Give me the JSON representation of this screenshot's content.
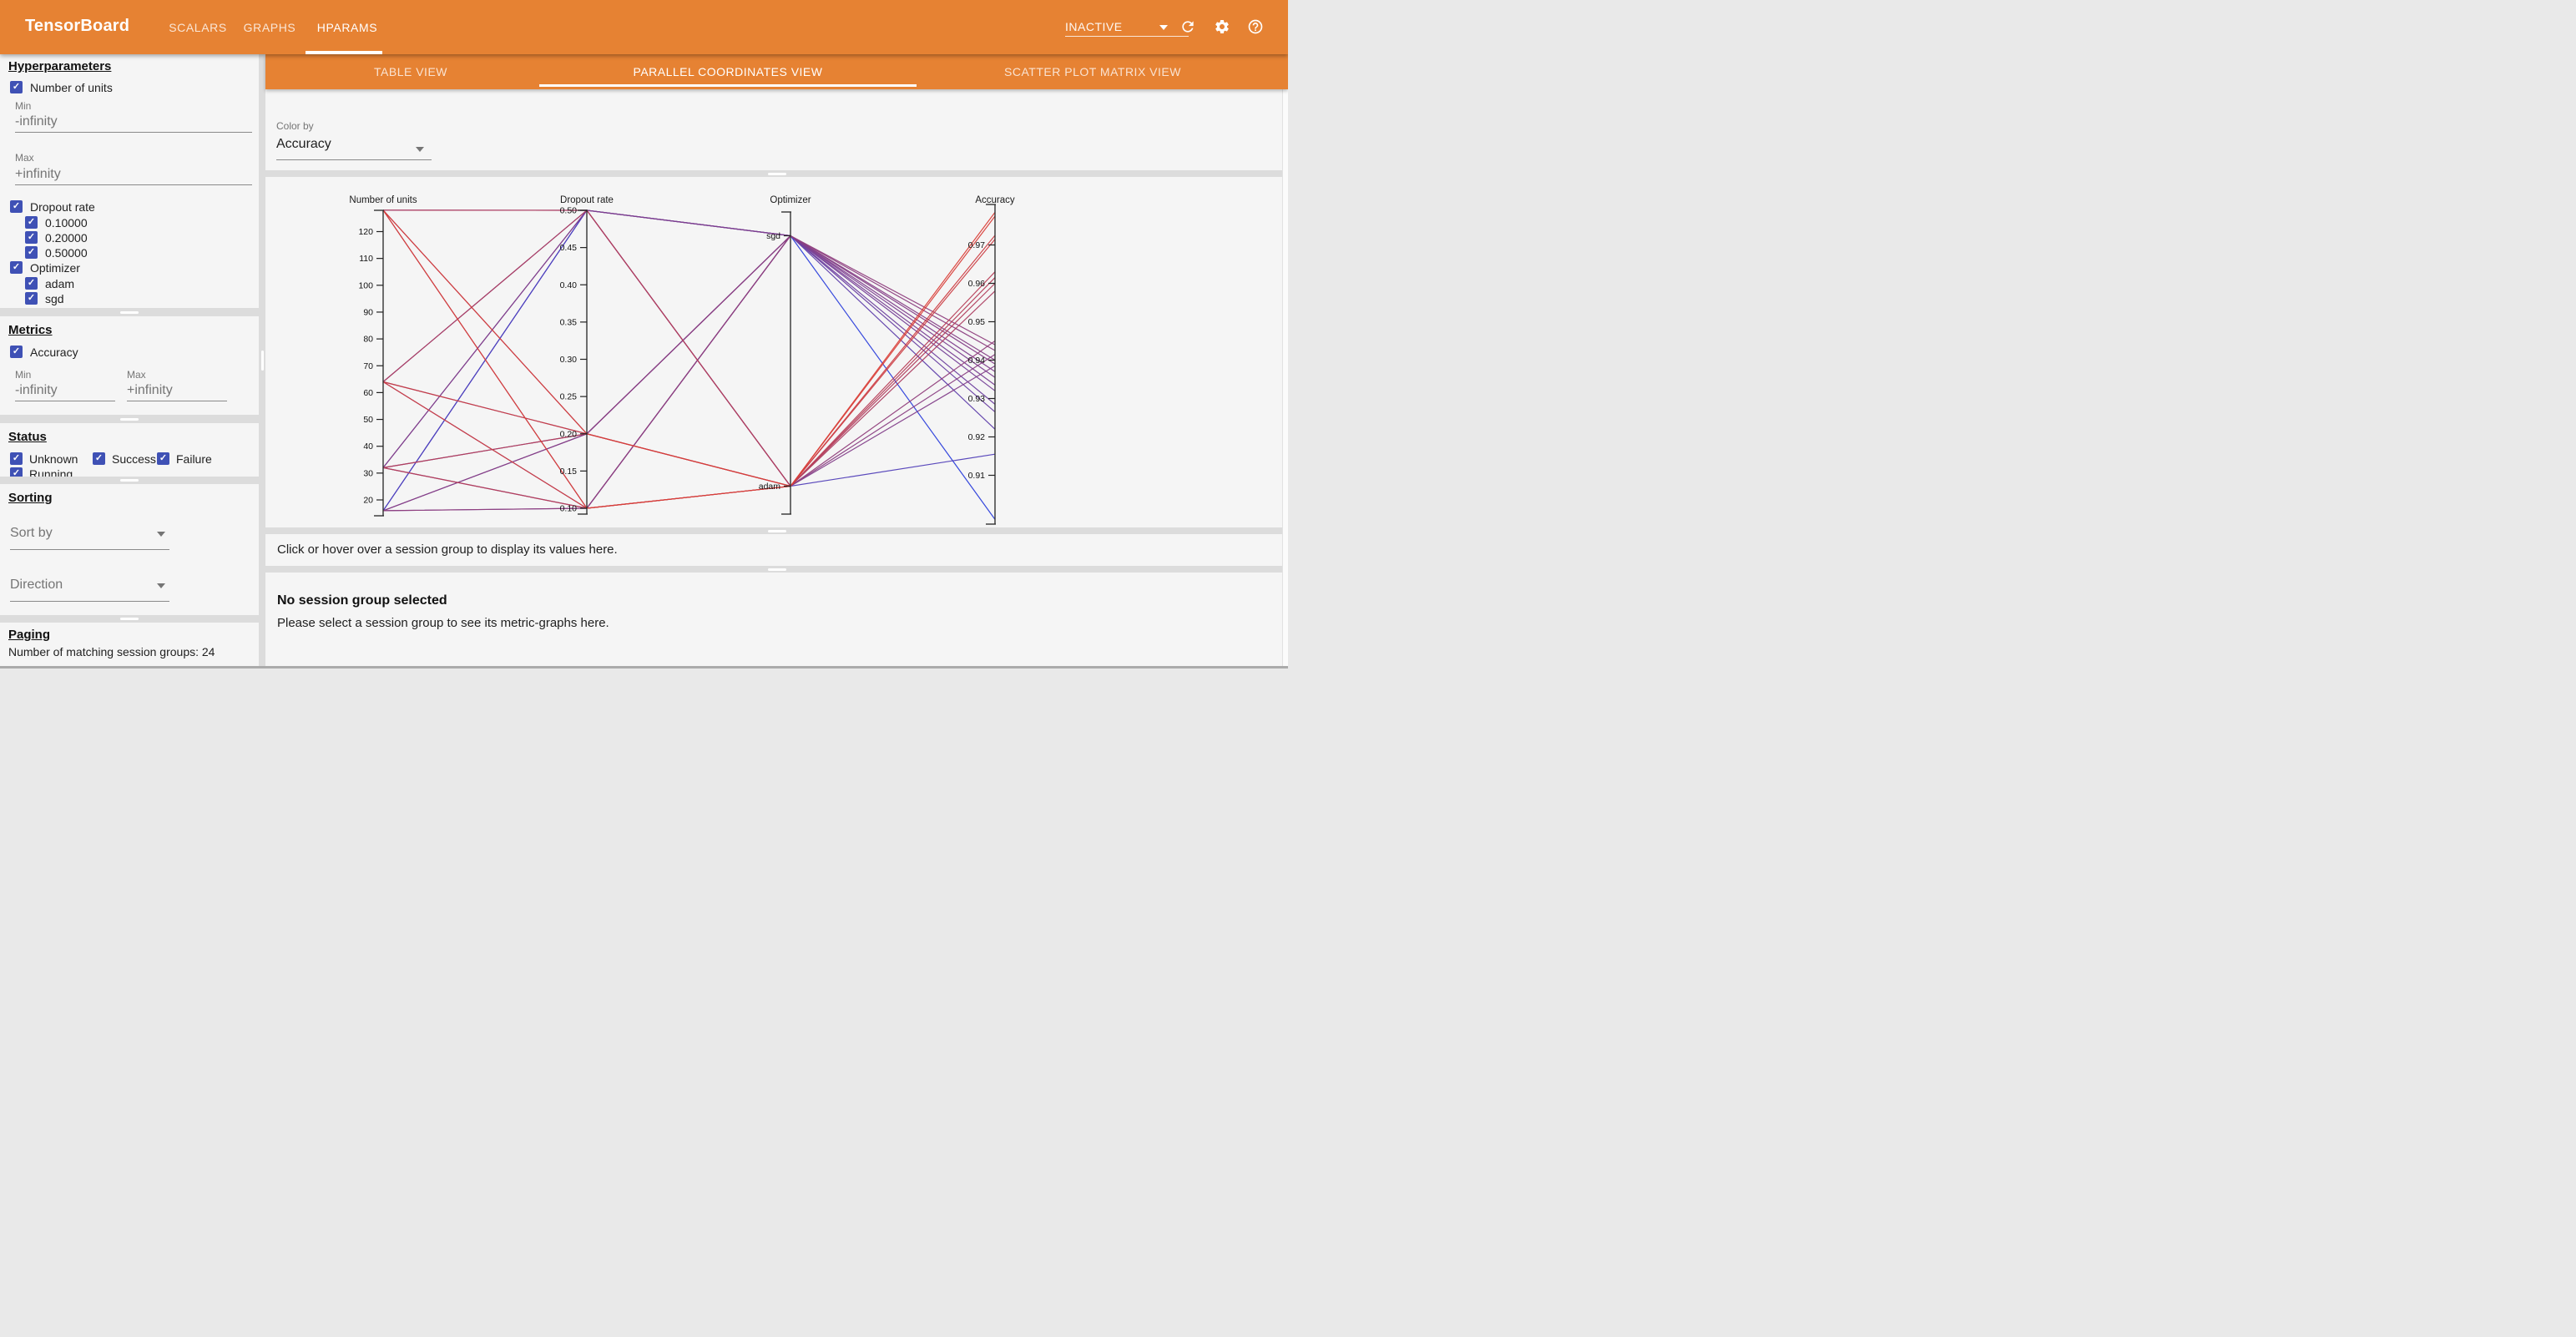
{
  "header": {
    "app_title": "TensorBoard",
    "nav_tabs": [
      "SCALARS",
      "GRAPHS",
      "HPARAMS"
    ],
    "active_nav_tab": "HPARAMS",
    "run_status": "INACTIVE",
    "icons": [
      "refresh-icon",
      "gear-icon",
      "help-icon"
    ]
  },
  "sidebar": {
    "hyperparameters": {
      "heading": "Hyperparameters",
      "number_of_units": {
        "label": "Number of units",
        "checked": true,
        "min_label": "Min",
        "min_value": "-infinity",
        "max_label": "Max",
        "max_value": "+infinity"
      },
      "dropout": {
        "label": "Dropout rate",
        "checked": true,
        "values": [
          "0.10000",
          "0.20000",
          "0.50000"
        ]
      },
      "optimizer": {
        "label": "Optimizer",
        "checked": true,
        "values": [
          "adam",
          "sgd"
        ]
      }
    },
    "metrics": {
      "heading": "Metrics",
      "accuracy_label": "Accuracy",
      "checked": true,
      "min_label": "Min",
      "min_value": "-infinity",
      "max_label": "Max",
      "max_value": "+infinity"
    },
    "status": {
      "heading": "Status",
      "options": [
        "Unknown",
        "Success",
        "Failure",
        "Running"
      ]
    },
    "sorting": {
      "heading": "Sorting",
      "sort_by_placeholder": "Sort by",
      "direction_placeholder": "Direction"
    },
    "paging": {
      "heading": "Paging",
      "summary": "Number of matching session groups: 24"
    }
  },
  "main": {
    "view_tabs": [
      "TABLE VIEW",
      "PARALLEL COORDINATES VIEW",
      "SCATTER PLOT MATRIX VIEW"
    ],
    "active_view_tab": "PARALLEL COORDINATES VIEW",
    "color_by": {
      "label": "Color by",
      "value": "Accuracy"
    },
    "details_hint": "Click or hover over a session group to display its values here.",
    "no_selection": {
      "title": "No session group selected",
      "message": "Please select a session group to see its metric-graphs here."
    }
  },
  "chart_data": {
    "type": "parallel-coordinates",
    "color_by": "Accuracy",
    "color_scale": {
      "low": "#2b3fdc",
      "high": "#db3f37",
      "domain": [
        0.898,
        0.979
      ]
    },
    "axes": [
      {
        "name": "Number of units",
        "type": "numeric",
        "ticks": [
          20,
          30,
          40,
          50,
          60,
          70,
          80,
          90,
          100,
          110,
          120
        ],
        "distinct_values": [
          16,
          32,
          64,
          128
        ]
      },
      {
        "name": "Dropout rate",
        "type": "numeric",
        "ticks": [
          0.1,
          0.15,
          0.2,
          0.25,
          0.3,
          0.35,
          0.4,
          0.45,
          0.5
        ],
        "distinct_values": [
          0.1,
          0.2,
          0.5
        ]
      },
      {
        "name": "Optimizer",
        "type": "categorical",
        "categories": [
          "sgd",
          "adam"
        ]
      },
      {
        "name": "Accuracy",
        "type": "numeric",
        "ticks": [
          0.91,
          0.92,
          0.93,
          0.94,
          0.95,
          0.96,
          0.97
        ]
      }
    ],
    "sessions": [
      {
        "units": 128,
        "dropout": 0.1,
        "optimizer": "adam",
        "accuracy": 0.9785
      },
      {
        "units": 128,
        "dropout": 0.2,
        "optimizer": "adam",
        "accuracy": 0.9775
      },
      {
        "units": 64,
        "dropout": 0.1,
        "optimizer": "adam",
        "accuracy": 0.9725
      },
      {
        "units": 64,
        "dropout": 0.2,
        "optimizer": "adam",
        "accuracy": 0.9715
      },
      {
        "units": 32,
        "dropout": 0.1,
        "optimizer": "adam",
        "accuracy": 0.963
      },
      {
        "units": 32,
        "dropout": 0.2,
        "optimizer": "adam",
        "accuracy": 0.9615
      },
      {
        "units": 128,
        "dropout": 0.5,
        "optimizer": "adam",
        "accuracy": 0.96
      },
      {
        "units": 64,
        "dropout": 0.5,
        "optimizer": "adam",
        "accuracy": 0.958
      },
      {
        "units": 16,
        "dropout": 0.1,
        "optimizer": "adam",
        "accuracy": 0.945
      },
      {
        "units": 16,
        "dropout": 0.2,
        "optimizer": "adam",
        "accuracy": 0.9415
      },
      {
        "units": 32,
        "dropout": 0.5,
        "optimizer": "adam",
        "accuracy": 0.9385
      },
      {
        "units": 16,
        "dropout": 0.5,
        "optimizer": "adam",
        "accuracy": 0.9155
      },
      {
        "units": 128,
        "dropout": 0.1,
        "optimizer": "sgd",
        "accuracy": 0.944
      },
      {
        "units": 128,
        "dropout": 0.2,
        "optimizer": "sgd",
        "accuracy": 0.9425
      },
      {
        "units": 64,
        "dropout": 0.1,
        "optimizer": "sgd",
        "accuracy": 0.94
      },
      {
        "units": 64,
        "dropout": 0.2,
        "optimizer": "sgd",
        "accuracy": 0.939
      },
      {
        "units": 128,
        "dropout": 0.5,
        "optimizer": "sgd",
        "accuracy": 0.937
      },
      {
        "units": 64,
        "dropout": 0.5,
        "optimizer": "sgd",
        "accuracy": 0.9355
      },
      {
        "units": 32,
        "dropout": 0.1,
        "optimizer": "sgd",
        "accuracy": 0.9335
      },
      {
        "units": 32,
        "dropout": 0.2,
        "optimizer": "sgd",
        "accuracy": 0.932
      },
      {
        "units": 32,
        "dropout": 0.5,
        "optimizer": "sgd",
        "accuracy": 0.9285
      },
      {
        "units": 16,
        "dropout": 0.1,
        "optimizer": "sgd",
        "accuracy": 0.9265
      },
      {
        "units": 16,
        "dropout": 0.2,
        "optimizer": "sgd",
        "accuracy": 0.922
      },
      {
        "units": 16,
        "dropout": 0.5,
        "optimizer": "sgd",
        "accuracy": 0.8985
      }
    ]
  }
}
